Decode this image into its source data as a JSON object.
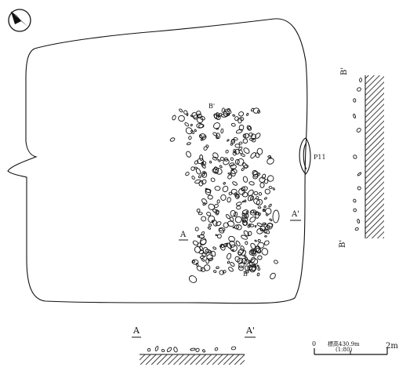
{
  "labels": {
    "section_a_start": "A",
    "section_a_end": "A'",
    "section_b_top": "B'",
    "section_b_bottom": "B'",
    "plan_a_start": "A",
    "plan_a_end": "A'",
    "plan_b_top": "B'",
    "plan_b_bottom": "B'",
    "pit_label": "P11"
  },
  "scale": {
    "left_value": "0",
    "right_value": "2m",
    "elevation": "標高430.9m",
    "ratio": "(1:80)"
  },
  "icons": {
    "north": "north-arrow-icon"
  }
}
